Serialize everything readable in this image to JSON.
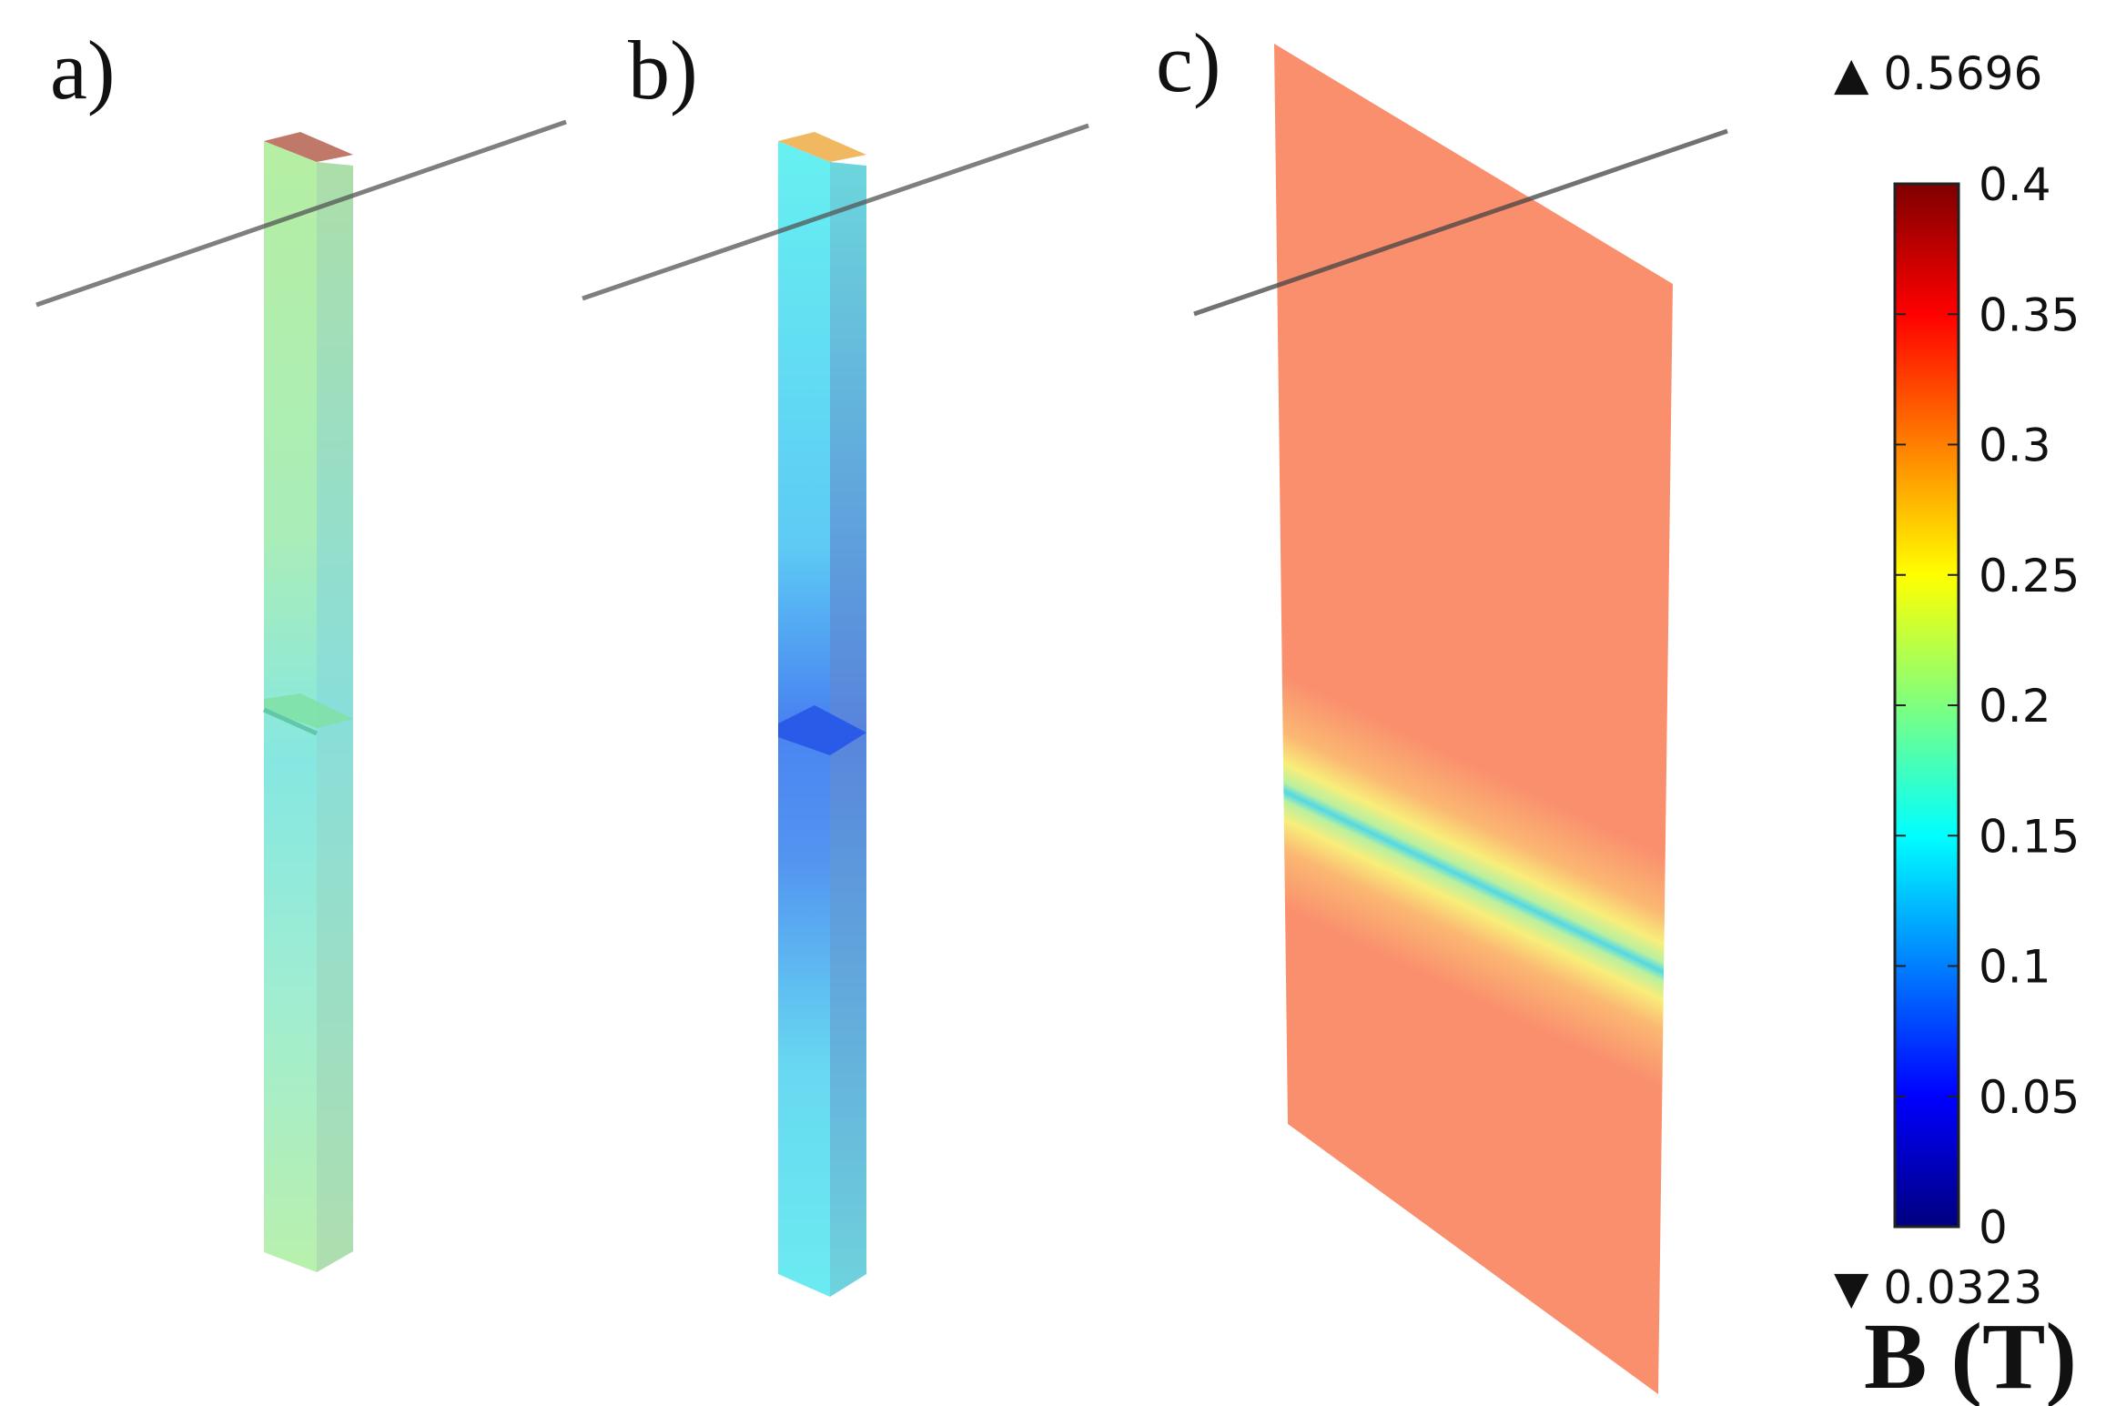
{
  "panels": {
    "a": {
      "label": "a)"
    },
    "b": {
      "label": "b)"
    },
    "c": {
      "label": "c)"
    }
  },
  "colorbar": {
    "max_marker": "▲ 0.5696",
    "min_marker": "▼ 0.0323",
    "ticks": [
      "0.4",
      "0.35",
      "0.3",
      "0.25",
      "0.2",
      "0.15",
      "0.1",
      "0.05",
      "0"
    ],
    "title": "B (T)",
    "colormap": [
      "#00007f",
      "#0000ff",
      "#007fff",
      "#00ffff",
      "#7fff7f",
      "#ffff00",
      "#ff7f00",
      "#ff0000",
      "#7f0000"
    ]
  },
  "colors": {
    "panel_a_bar": "#a8ecb0",
    "panel_b_bar": "#5fe6ee",
    "panel_c_plate": "#fa8f6e",
    "field_line": "#555555"
  }
}
